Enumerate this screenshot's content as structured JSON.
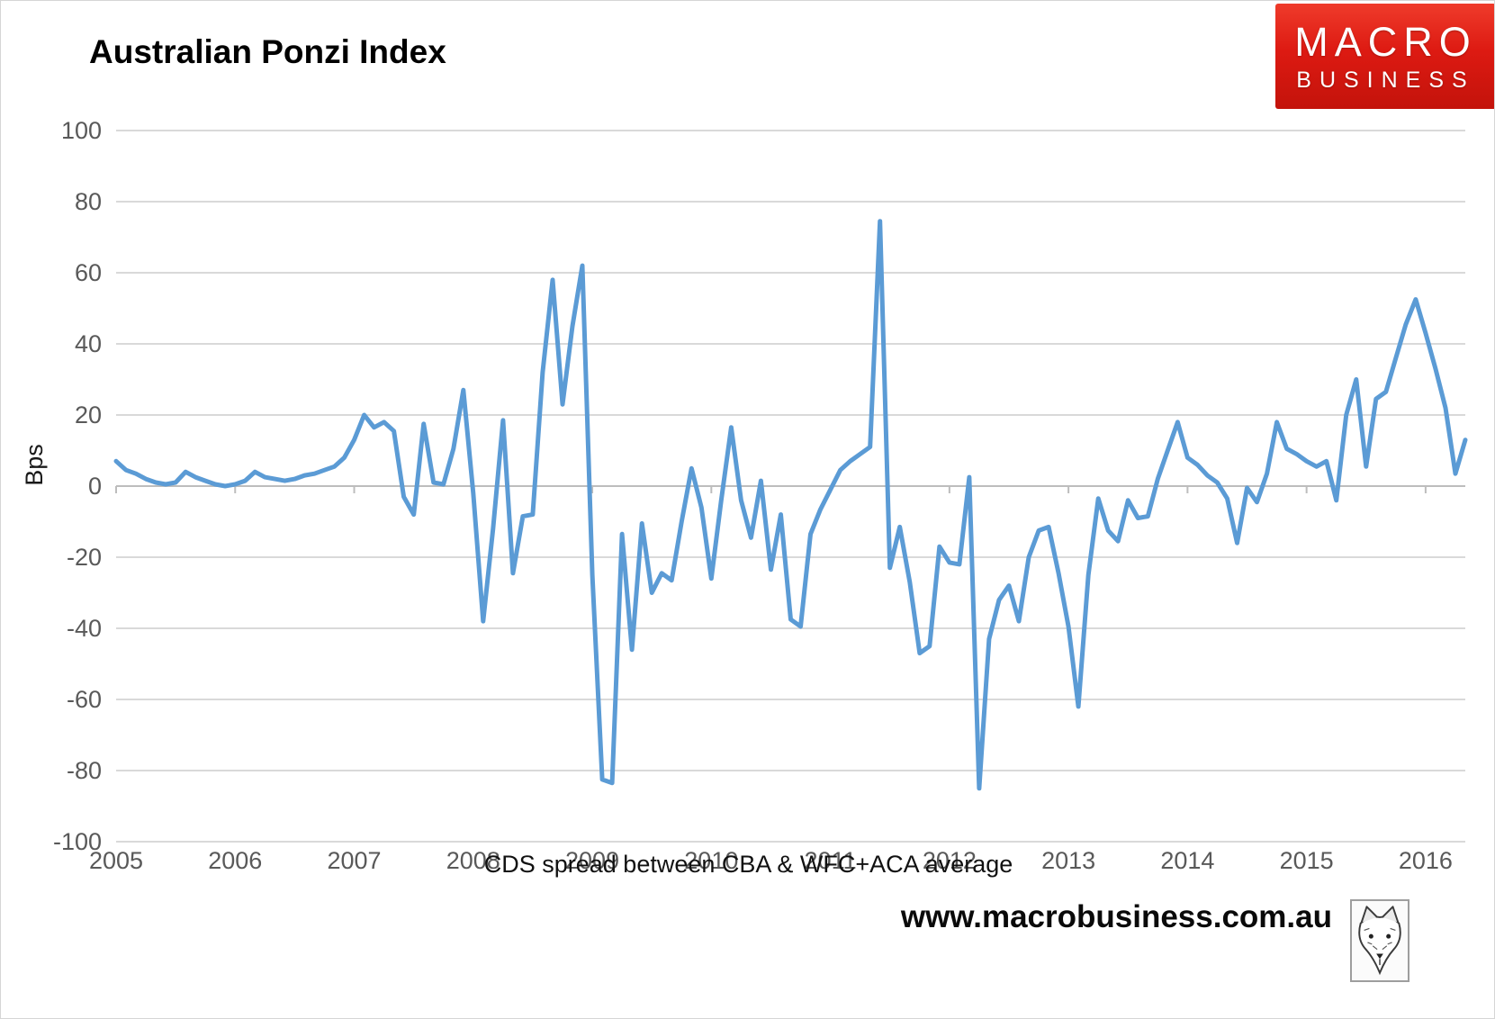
{
  "title": "Australian Ponzi Index",
  "logo": {
    "line1": "MACRO",
    "line2": "BUSINESS"
  },
  "footer": {
    "url": "www.macrobusiness.com.au"
  },
  "colors": {
    "line": "#5B9BD5",
    "grid": "#D9D9D9",
    "axis": "#BDBDBD",
    "tick_text": "#595959",
    "logo_red": "#DD1A12"
  },
  "chart_data": {
    "type": "line",
    "title": "Australian Ponzi Index",
    "ylabel": "Bps",
    "caption": "CDS spread between CBA & WFC+ACA average",
    "ylim": [
      -100,
      100
    ],
    "ytick_step": 20,
    "ytick_labels": [
      "100",
      "80",
      "60",
      "40",
      "20",
      "0",
      "-20",
      "-40",
      "-60",
      "-80",
      "-100"
    ],
    "year_labels": [
      "2005",
      "2006",
      "2007",
      "2008",
      "2009",
      "2010",
      "2011",
      "2012",
      "2013",
      "2014",
      "2015",
      "2016"
    ],
    "x_monthly_start": "2005-01",
    "x_monthly_end": "2016-05",
    "grid": true,
    "legend_position": "none",
    "series": [
      {
        "name": "CDS spread between CBA & WFC+ACA average",
        "values": [
          7,
          4.5,
          3.5,
          2,
          1,
          0.5,
          1,
          4,
          2.5,
          1.5,
          0.5,
          0,
          0.5,
          1.5,
          4,
          2.5,
          2,
          1.5,
          2,
          3,
          3.5,
          4.5,
          5.5,
          8,
          13,
          20,
          16.5,
          18,
          15.5,
          -3,
          -8,
          17.5,
          1,
          0.5,
          10.5,
          27,
          -2,
          -38,
          -12,
          18.5,
          -24.5,
          -8.5,
          -8,
          32,
          58,
          23,
          45,
          62,
          -25,
          -82.5,
          -83.5,
          -13.5,
          -46,
          -10.5,
          -30,
          -24.5,
          -26.5,
          -10,
          5,
          -6,
          -26,
          -4,
          16.5,
          -4,
          -14.5,
          1.5,
          -23.5,
          -8,
          -37.5,
          -39.5,
          -13.5,
          -6.5,
          -1,
          4.5,
          7,
          9,
          11,
          74.5,
          -23,
          -11.5,
          -27,
          -47,
          -45,
          -17,
          -21.5,
          -22,
          2.5,
          -85,
          -43,
          -32,
          -28,
          -38,
          -20,
          -12.5,
          -11.5,
          -24.5,
          -39.5,
          -62,
          -25,
          -3.5,
          -12.5,
          -15.5,
          -4,
          -9,
          -8.5,
          2,
          10,
          18,
          8,
          6,
          3,
          1,
          -3.5,
          -16,
          -0.5,
          -4.5,
          3.5,
          18,
          10.5,
          9,
          7,
          5.5,
          7,
          -4,
          20,
          30,
          5.5,
          24.5,
          26.5,
          36,
          45.5,
          52.5,
          43,
          33,
          22,
          3.5,
          13
        ]
      }
    ]
  }
}
